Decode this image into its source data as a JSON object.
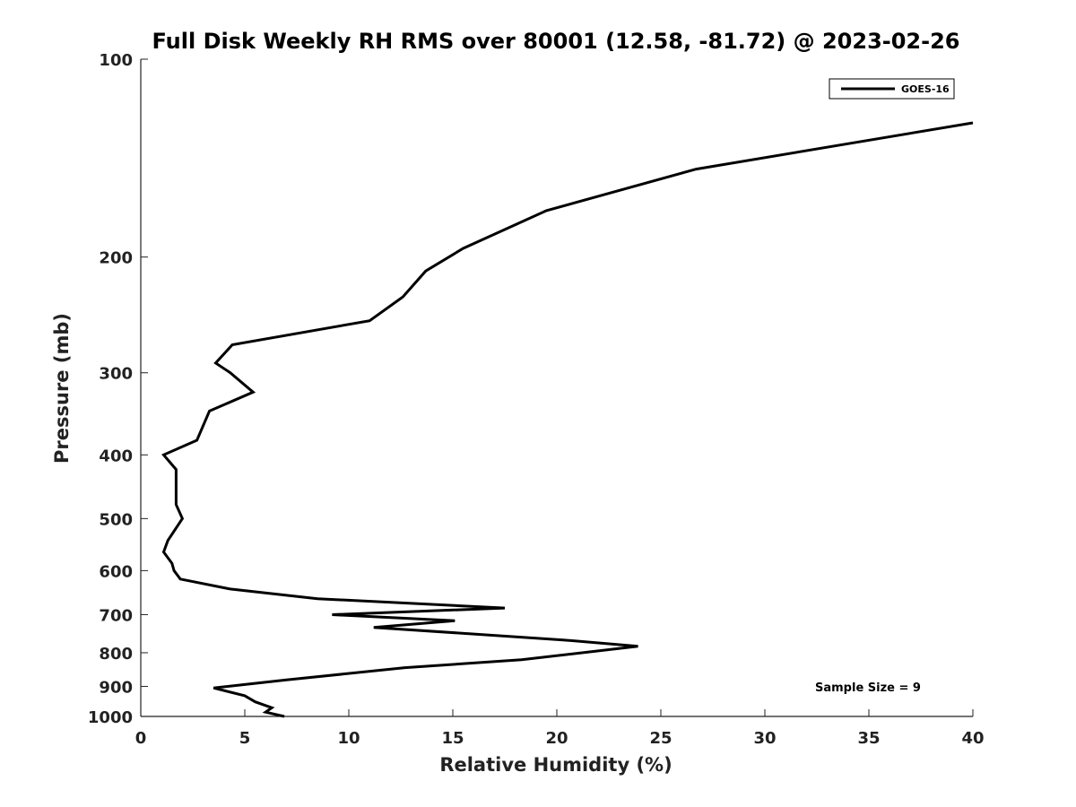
{
  "chart_data": {
    "type": "line",
    "title": "Full Disk Weekly RH RMS over 80001 (12.58, -81.72) @ 2023-02-26",
    "xlabel": "Relative Humidity (%)",
    "ylabel": "Pressure (mb)",
    "xlim": [
      0,
      40
    ],
    "ylim": [
      100,
      1000
    ],
    "y_scale": "log",
    "y_inverted": true,
    "x_ticks": [
      0,
      5,
      10,
      15,
      20,
      25,
      30,
      35,
      40
    ],
    "y_ticks": [
      100,
      200,
      300,
      400,
      500,
      600,
      700,
      800,
      900,
      1000
    ],
    "grid": false,
    "legend_position": "top-right",
    "series": [
      {
        "name": "GOES-16",
        "color": "#000000",
        "points": [
          {
            "x": 40.0,
            "y": 125
          },
          {
            "x": 26.7,
            "y": 147
          },
          {
            "x": 19.5,
            "y": 170
          },
          {
            "x": 15.5,
            "y": 194
          },
          {
            "x": 13.7,
            "y": 210
          },
          {
            "x": 12.6,
            "y": 230
          },
          {
            "x": 11.0,
            "y": 250
          },
          {
            "x": 4.4,
            "y": 272
          },
          {
            "x": 3.6,
            "y": 290
          },
          {
            "x": 4.3,
            "y": 300
          },
          {
            "x": 5.4,
            "y": 321
          },
          {
            "x": 3.3,
            "y": 343
          },
          {
            "x": 2.7,
            "y": 380
          },
          {
            "x": 1.1,
            "y": 400
          },
          {
            "x": 1.7,
            "y": 421
          },
          {
            "x": 1.7,
            "y": 476
          },
          {
            "x": 2.0,
            "y": 500
          },
          {
            "x": 1.3,
            "y": 540
          },
          {
            "x": 1.1,
            "y": 562
          },
          {
            "x": 1.5,
            "y": 585
          },
          {
            "x": 1.6,
            "y": 600
          },
          {
            "x": 1.9,
            "y": 618
          },
          {
            "x": 4.3,
            "y": 640
          },
          {
            "x": 8.5,
            "y": 662
          },
          {
            "x": 17.5,
            "y": 684
          },
          {
            "x": 9.2,
            "y": 700
          },
          {
            "x": 15.1,
            "y": 715
          },
          {
            "x": 11.2,
            "y": 732
          },
          {
            "x": 20.3,
            "y": 765
          },
          {
            "x": 23.9,
            "y": 782
          },
          {
            "x": 18.3,
            "y": 820
          },
          {
            "x": 12.7,
            "y": 843
          },
          {
            "x": 7.0,
            "y": 880
          },
          {
            "x": 3.5,
            "y": 905
          },
          {
            "x": 5.0,
            "y": 930
          },
          {
            "x": 5.5,
            "y": 950
          },
          {
            "x": 6.3,
            "y": 970
          },
          {
            "x": 6.0,
            "y": 985
          },
          {
            "x": 6.9,
            "y": 1000
          }
        ]
      }
    ],
    "legend": [
      {
        "label": "GOES-16",
        "color": "#000000"
      }
    ],
    "annotation": "Sample Size = 9"
  }
}
